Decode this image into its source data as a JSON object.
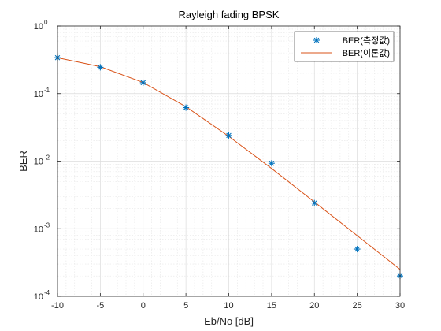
{
  "chart_data": {
    "type": "line",
    "title": "Rayleigh fading BPSK",
    "xlabel": "Eb/No [dB]",
    "ylabel": "BER",
    "xlim": [
      -10,
      30
    ],
    "ylim": [
      0.0001,
      1
    ],
    "yscale": "log",
    "grid": true,
    "minor_grid": true,
    "legend_position": "top-right",
    "x_ticks": [
      -10,
      -5,
      0,
      5,
      10,
      15,
      20,
      25,
      30
    ],
    "x_tick_labels": [
      "-10",
      "-5",
      "0",
      "5",
      "10",
      "15",
      "20",
      "25",
      "30"
    ],
    "y_ticks": [
      {
        "value": 1,
        "base": "10",
        "exp": "0"
      },
      {
        "value": 0.1,
        "base": "10",
        "exp": "-1"
      },
      {
        "value": 0.01,
        "base": "10",
        "exp": "-2"
      },
      {
        "value": 0.001,
        "base": "10",
        "exp": "-3"
      },
      {
        "value": 0.0001,
        "base": "10",
        "exp": "-4"
      }
    ],
    "series": [
      {
        "name": "BER(측정값)",
        "style": "marker",
        "marker": "asterisk",
        "color": "#0072BD",
        "x": [
          -10,
          -5,
          0,
          5,
          10,
          15,
          20,
          25,
          30
        ],
        "y": [
          0.34,
          0.245,
          0.145,
          0.062,
          0.024,
          0.0093,
          0.0024,
          0.0005,
          0.0002
        ]
      },
      {
        "name": "BER(이론값)",
        "style": "line",
        "color": "#D95319",
        "x": [
          -10,
          -5,
          0,
          5,
          10,
          15,
          20,
          25,
          30
        ],
        "y": [
          0.34,
          0.25,
          0.146,
          0.064,
          0.0233,
          0.0078,
          0.00249,
          0.00079,
          0.00025
        ]
      }
    ]
  }
}
